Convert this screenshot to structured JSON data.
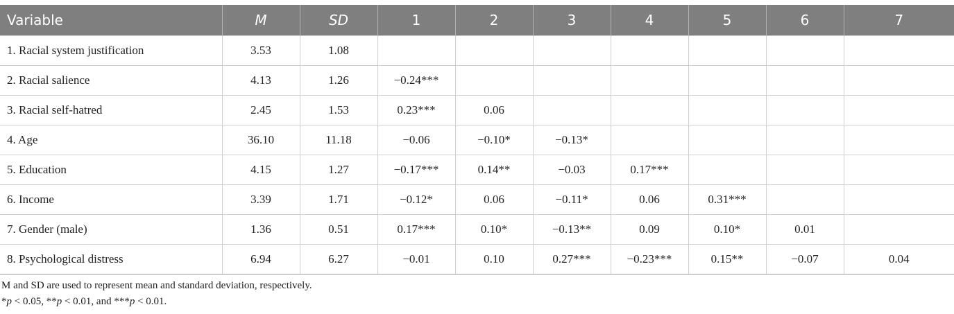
{
  "table": {
    "headers": [
      "Variable",
      "M",
      "SD",
      "1",
      "2",
      "3",
      "4",
      "5",
      "6",
      "7"
    ],
    "rows": [
      [
        "1. Racial system justification",
        "3.53",
        "1.08",
        "",
        "",
        "",
        "",
        "",
        "",
        ""
      ],
      [
        "2. Racial salience",
        "4.13",
        "1.26",
        "−0.24***",
        "",
        "",
        "",
        "",
        "",
        ""
      ],
      [
        "3. Racial self-hatred",
        "2.45",
        "1.53",
        "0.23***",
        "0.06",
        "",
        "",
        "",
        "",
        ""
      ],
      [
        "4. Age",
        "36.10",
        "11.18",
        "−0.06",
        "−0.10*",
        "−0.13*",
        "",
        "",
        "",
        ""
      ],
      [
        "5. Education",
        "4.15",
        "1.27",
        "−0.17***",
        "0.14**",
        "−0.03",
        "0.17***",
        "",
        "",
        ""
      ],
      [
        "6. Income",
        "3.39",
        "1.71",
        "−0.12*",
        "0.06",
        "−0.11*",
        "0.06",
        "0.31***",
        "",
        ""
      ],
      [
        "7. Gender (male)",
        "1.36",
        "0.51",
        "0.17***",
        "0.10*",
        "−0.13**",
        "0.09",
        "0.10*",
        "0.01",
        ""
      ],
      [
        "8. Psychological distress",
        "6.94",
        "6.27",
        "−0.01",
        "0.10",
        "0.27***",
        "−0.23***",
        "0.15**",
        "−0.07",
        "0.04"
      ]
    ]
  },
  "notes": {
    "line1": "M and SD are used to represent mean and standard deviation, respectively.",
    "line2_parts": [
      "*",
      "p",
      " < 0.05, **",
      "p",
      " < 0.01, and ***",
      "p",
      " < 0.01."
    ]
  },
  "colors": {
    "header_bg": "#7f7f7f",
    "grid": "#cfcfcf"
  }
}
